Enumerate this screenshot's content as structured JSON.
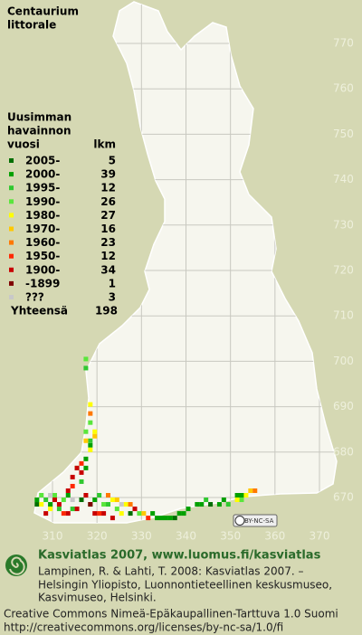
{
  "title": [
    "Centaurium",
    "littorale"
  ],
  "legend": {
    "header": [
      "Uusimman",
      "havainnon",
      "vuosi"
    ],
    "count_header": "lkm",
    "rows": [
      {
        "label": "2005-",
        "count": 5,
        "color": "#006e00",
        "squares": [
          [
            327,
            666
          ],
          [
            345,
            668
          ],
          [
            306,
            668
          ],
          [
            316,
            669
          ],
          [
            337,
            665
          ]
        ]
      },
      {
        "label": "2000-",
        "count": 39,
        "color": "#00a000",
        "squares": [
          [
            334,
            665
          ],
          [
            335,
            665
          ],
          [
            336,
            665
          ],
          [
            338,
            666
          ],
          [
            339,
            666
          ],
          [
            340,
            667
          ],
          [
            342,
            668
          ],
          [
            343,
            668
          ],
          [
            333,
            665
          ],
          [
            332,
            666
          ],
          [
            318,
            668
          ],
          [
            319,
            669
          ],
          [
            306,
            669
          ],
          [
            309,
            668
          ],
          [
            313,
            670
          ],
          [
            351,
            670
          ],
          [
            352,
            670
          ],
          [
            347,
            668
          ],
          [
            348,
            669
          ],
          [
            317,
            676
          ],
          [
            318,
            681
          ],
          [
            317,
            678
          ]
        ]
      },
      {
        "label": "1995-",
        "count": 12,
        "color": "#30c830",
        "squares": [
          [
            317,
            698
          ],
          [
            308,
            669
          ],
          [
            311,
            667
          ],
          [
            320,
            670
          ],
          [
            322,
            668
          ],
          [
            316,
            673
          ],
          [
            318,
            682
          ],
          [
            314,
            667
          ],
          [
            349,
            668
          ],
          [
            344,
            669
          ]
        ]
      },
      {
        "label": "1990-",
        "count": 26,
        "color": "#5ae63c",
        "squares": [
          [
            317,
            700
          ],
          [
            318,
            686
          ],
          [
            317,
            684
          ],
          [
            307,
            670
          ],
          [
            312,
            669
          ],
          [
            321,
            668
          ],
          [
            324,
            667
          ],
          [
            315,
            676
          ],
          [
            329,
            666
          ],
          [
            352,
            669
          ],
          [
            310,
            670
          ]
        ]
      },
      {
        "label": "1980-",
        "count": 27,
        "color": "#ffff00",
        "squares": [
          [
            318,
            690
          ],
          [
            319,
            684
          ],
          [
            318,
            680
          ],
          [
            323,
            669
          ],
          [
            325,
            666
          ],
          [
            309,
            667
          ],
          [
            351,
            669
          ],
          [
            353,
            670
          ],
          [
            326,
            668
          ],
          [
            307,
            668
          ]
        ]
      },
      {
        "label": "1970-",
        "count": 16,
        "color": "#ffc800",
        "squares": [
          [
            319,
            683
          ],
          [
            317,
            682
          ],
          [
            324,
            669
          ],
          [
            330,
            666
          ],
          [
            354,
            671
          ]
        ]
      },
      {
        "label": "1960-",
        "count": 23,
        "color": "#ff7800",
        "squares": [
          [
            318,
            688
          ],
          [
            322,
            670
          ],
          [
            327,
            668
          ],
          [
            355,
            671
          ]
        ]
      },
      {
        "label": "1950-",
        "count": 12,
        "color": "#ff2800",
        "squares": [
          [
            316,
            677
          ],
          [
            314,
            672
          ],
          [
            320,
            666
          ],
          [
            312,
            666
          ],
          [
            331,
            665
          ]
        ]
      },
      {
        "label": "1900-",
        "count": 34,
        "color": "#c80000",
        "squares": [
          [
            315,
            676
          ],
          [
            316,
            675
          ],
          [
            314,
            674
          ],
          [
            313,
            671
          ],
          [
            311,
            668
          ],
          [
            310,
            669
          ],
          [
            315,
            667
          ],
          [
            317,
            670
          ],
          [
            319,
            666
          ],
          [
            321,
            666
          ],
          [
            323,
            665
          ],
          [
            308,
            666
          ],
          [
            313,
            666
          ],
          [
            328,
            667
          ]
        ]
      },
      {
        "label": "-1899",
        "count": 1,
        "color": "#800000",
        "squares": [
          [
            318,
            668
          ]
        ]
      },
      {
        "label": "???",
        "count": 3,
        "color": "#c8c8c8",
        "squares": [
          [
            314,
            669
          ],
          [
            309,
            670
          ],
          [
            325,
            668
          ]
        ]
      }
    ],
    "total": {
      "label": "Yhteensä",
      "value": 198
    }
  },
  "axes": {
    "xticks": [
      310,
      320,
      330,
      340,
      350,
      360,
      370
    ],
    "yticks": [
      770,
      760,
      750,
      740,
      730,
      720,
      710,
      700,
      690,
      680,
      670
    ]
  },
  "license_badge": "BY-NC-SA",
  "footer": {
    "heading": "Kasviatlas 2007, www.luomus.fi/kasviatlas",
    "citation": [
      "Lampinen, R. & Lahti, T. 2008: Kasviatlas 2007. –",
      "Helsingin Yliopisto, Luonnontieteellinen keskusmuseo,",
      "Kasvimuseo, Helsinki."
    ],
    "license": [
      "Creative Commons Nimeä-Epäkaupallinen-Tarttuva 1.0 Suomi",
      "http://creativecommons.org/licenses/by-nc-sa/1.0/fi"
    ]
  }
}
